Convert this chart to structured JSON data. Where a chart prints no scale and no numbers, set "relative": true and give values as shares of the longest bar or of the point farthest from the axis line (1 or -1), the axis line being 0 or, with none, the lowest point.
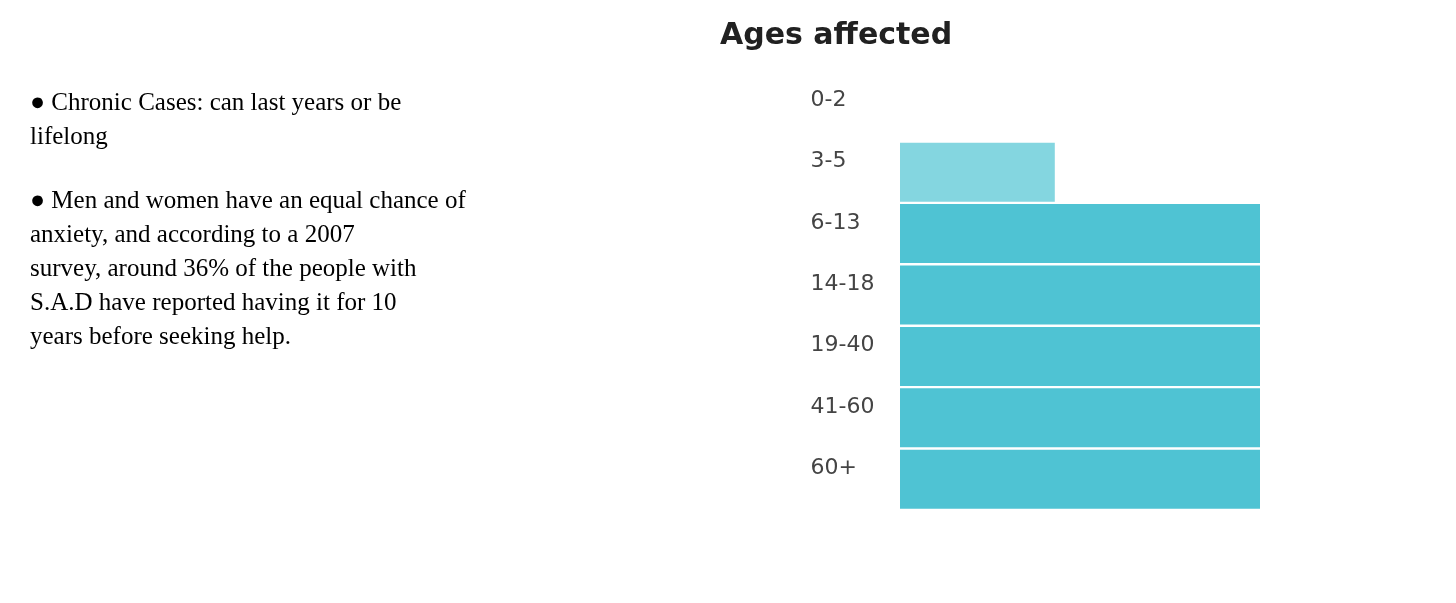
{
  "chart_data": [
    {
      "type": "other",
      "annotations": [
        "● Chronic Cases: can last years or be lifelong",
        "● Men and women have an equal chance of anxiety, and according to a 2007 survey, around 36% of the people with S.A.D have reported having it for 10 years before seeking help."
      ]
    },
    {
      "type": "bar",
      "orientation": "horizontal",
      "relative": true,
      "title": "Ages affected",
      "categories": [
        "0-2",
        "3-5",
        "6-13",
        "14-18",
        "19-40",
        "41-60",
        "60+"
      ],
      "values": [
        0,
        0.43,
        1,
        1,
        1,
        1,
        1
      ],
      "colors": [
        "#4fc3d3",
        "#84d6e0",
        "#4fc3d3",
        "#4fc3d3",
        "#4fc3d3",
        "#4fc3d3",
        "#4fc3d3"
      ]
    }
  ]
}
